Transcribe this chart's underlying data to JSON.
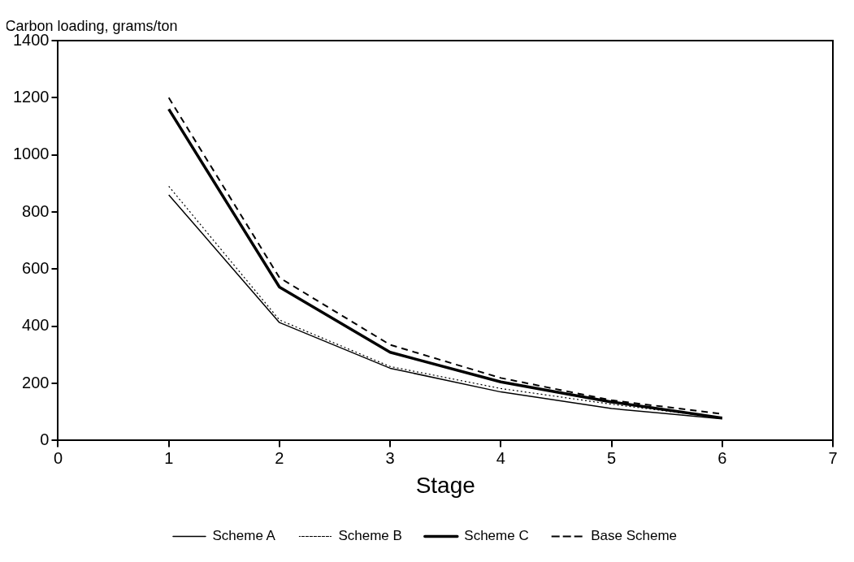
{
  "chart_data": {
    "type": "line",
    "ylabel": "Carbon loading, grams/ton",
    "xlabel": "Stage",
    "x": [
      1,
      2,
      3,
      4,
      5,
      6
    ],
    "xlim": [
      0,
      7
    ],
    "xticks": [
      0,
      1,
      2,
      3,
      4,
      5,
      6,
      7
    ],
    "ylim": [
      0,
      1400
    ],
    "yticks": [
      0,
      200,
      400,
      600,
      800,
      1000,
      1200,
      1400
    ],
    "grid": false,
    "legend": "bottom",
    "marker": "none",
    "series": [
      {
        "name": "Scheme A",
        "color": "#000000",
        "line_style": "solid",
        "values": [
          860,
          413,
          253,
          170,
          112,
          76
        ]
      },
      {
        "name": "Scheme B",
        "color": "#000000",
        "line_style": "dotted",
        "values": [
          890,
          422,
          259,
          182,
          127,
          79
        ]
      },
      {
        "name": "Scheme C",
        "color": "#000000",
        "line_style": "solid",
        "values": [
          1160,
          537,
          309,
          205,
          135,
          79
        ]
      },
      {
        "name": "Base Scheme",
        "color": "#000000",
        "line_style": "dashed",
        "values": [
          1200,
          570,
          335,
          219,
          141,
          93
        ]
      }
    ]
  }
}
